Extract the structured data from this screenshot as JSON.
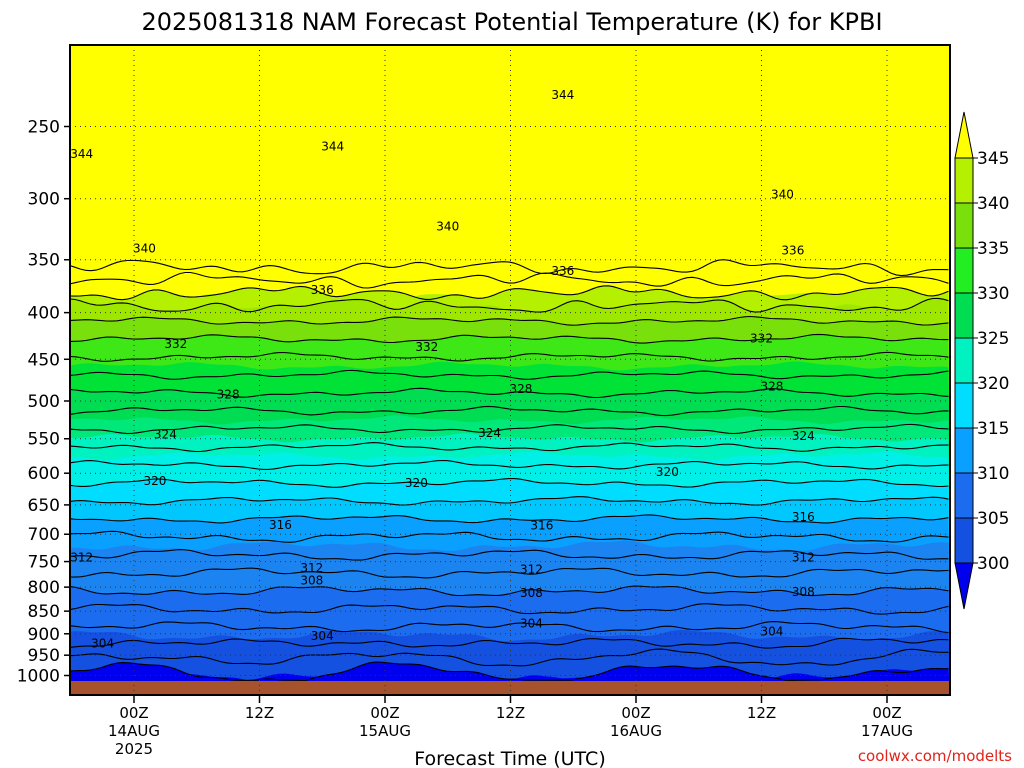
{
  "chart_data": {
    "type": "heatmap",
    "title": "2025081318 NAM Forecast Potential Temperature (K) for KPBI",
    "xlabel": "Forecast Time (UTC)",
    "ylabel": "",
    "credit": "coolwx.com/modelts",
    "y_scale": "log-pressure",
    "ylim": [
      1000,
      200
    ],
    "y_ticks": [
      250,
      300,
      350,
      400,
      450,
      500,
      550,
      600,
      650,
      700,
      750,
      800,
      850,
      900,
      950,
      1000
    ],
    "y_tick_labels": [
      "250",
      "300",
      "350",
      "400",
      "450",
      "500",
      "550",
      "600",
      "650",
      "700",
      "750",
      "800",
      "850",
      "900",
      "950",
      "1000"
    ],
    "x_ticks": [
      {
        "hour": 6,
        "label": "00Z",
        "date": "14AUG",
        "year": "2025"
      },
      {
        "hour": 18,
        "label": "12Z",
        "date": "",
        "year": ""
      },
      {
        "hour": 30,
        "label": "00Z",
        "date": "15AUG",
        "year": ""
      },
      {
        "hour": 42,
        "label": "12Z",
        "date": "",
        "year": ""
      },
      {
        "hour": 54,
        "label": "00Z",
        "date": "16AUG",
        "year": ""
      },
      {
        "hour": 66,
        "label": "12Z",
        "date": "",
        "year": ""
      },
      {
        "hour": 78,
        "label": "00Z",
        "date": "17AUG",
        "year": ""
      }
    ],
    "xlim": [
      0,
      84
    ],
    "grid": true,
    "colorbar": {
      "levels": [
        300,
        305,
        310,
        315,
        320,
        325,
        330,
        335,
        340,
        345
      ],
      "labels": [
        "300",
        "305",
        "310",
        "315",
        "320",
        "325",
        "330",
        "335",
        "340",
        "345"
      ],
      "colors": [
        "#0000ee",
        "#1451e0",
        "#1c6cf0",
        "#0aa0ff",
        "#00ddff",
        "#00f2c0",
        "#00dd52",
        "#22ee22",
        "#7ae00c",
        "#b4f000",
        "#ffff00"
      ]
    },
    "color_scale": [
      {
        "max": 300,
        "color": "#0000ee"
      },
      {
        "max": 305,
        "color": "#1451e0"
      },
      {
        "max": 310,
        "color": "#1c6cf0"
      },
      {
        "max": 315,
        "color": "#1c84f0"
      },
      {
        "max": 318,
        "color": "#0aa0ff"
      },
      {
        "max": 320,
        "color": "#00c8ff"
      },
      {
        "max": 322,
        "color": "#00ddff"
      },
      {
        "max": 325,
        "color": "#00f0e8"
      },
      {
        "max": 327,
        "color": "#00f2c0"
      },
      {
        "max": 329,
        "color": "#00e87a"
      },
      {
        "max": 332,
        "color": "#00dd52"
      },
      {
        "max": 335,
        "color": "#00e236"
      },
      {
        "max": 338,
        "color": "#3ee816"
      },
      {
        "max": 340,
        "color": "#7ae00c"
      },
      {
        "max": 342,
        "color": "#9ee800"
      },
      {
        "max": 344,
        "color": "#b4f000"
      },
      {
        "max": 999,
        "color": "#ffff00"
      }
    ],
    "contour_interval": 2,
    "contour_labels": [
      {
        "value": 344,
        "hour": 1,
        "pressure": 268
      },
      {
        "value": 344,
        "hour": 25,
        "pressure": 263
      },
      {
        "value": 344,
        "hour": 47,
        "pressure": 231
      },
      {
        "value": 340,
        "hour": 7,
        "pressure": 340
      },
      {
        "value": 340,
        "hour": 36,
        "pressure": 322
      },
      {
        "value": 340,
        "hour": 68,
        "pressure": 297
      },
      {
        "value": 336,
        "hour": 24,
        "pressure": 378
      },
      {
        "value": 336,
        "hour": 47,
        "pressure": 360
      },
      {
        "value": 336,
        "hour": 69,
        "pressure": 342
      },
      {
        "value": 332,
        "hour": 10,
        "pressure": 433
      },
      {
        "value": 332,
        "hour": 34,
        "pressure": 436
      },
      {
        "value": 332,
        "hour": 66,
        "pressure": 427
      },
      {
        "value": 328,
        "hour": 15,
        "pressure": 492
      },
      {
        "value": 328,
        "hour": 43,
        "pressure": 485
      },
      {
        "value": 328,
        "hour": 67,
        "pressure": 482
      },
      {
        "value": 324,
        "hour": 9,
        "pressure": 544
      },
      {
        "value": 324,
        "hour": 40,
        "pressure": 542
      },
      {
        "value": 324,
        "hour": 70,
        "pressure": 546
      },
      {
        "value": 320,
        "hour": 8,
        "pressure": 612
      },
      {
        "value": 320,
        "hour": 33,
        "pressure": 615
      },
      {
        "value": 320,
        "hour": 57,
        "pressure": 598
      },
      {
        "value": 316,
        "hour": 20,
        "pressure": 684
      },
      {
        "value": 316,
        "hour": 45,
        "pressure": 685
      },
      {
        "value": 316,
        "hour": 70,
        "pressure": 670
      },
      {
        "value": 312,
        "hour": 1,
        "pressure": 742
      },
      {
        "value": 312,
        "hour": 23,
        "pressure": 762
      },
      {
        "value": 312,
        "hour": 44,
        "pressure": 765
      },
      {
        "value": 312,
        "hour": 70,
        "pressure": 742
      },
      {
        "value": 308,
        "hour": 23,
        "pressure": 787
      },
      {
        "value": 308,
        "hour": 44,
        "pressure": 812
      },
      {
        "value": 308,
        "hour": 70,
        "pressure": 810
      },
      {
        "value": 304,
        "hour": 3,
        "pressure": 922
      },
      {
        "value": 304,
        "hour": 24,
        "pressure": 905
      },
      {
        "value": 304,
        "hour": 44,
        "pressure": 877
      },
      {
        "value": 304,
        "hour": 67,
        "pressure": 895
      }
    ]
  }
}
